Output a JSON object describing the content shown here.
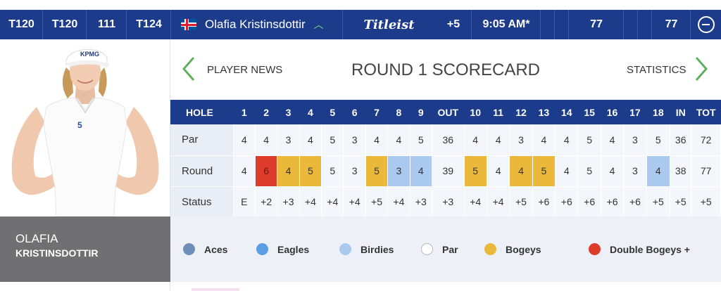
{
  "topbar": {
    "pos_1": "T120",
    "pos_2": "T120",
    "pos_3": "111",
    "pos_4": "T124",
    "player_name": "Olafia Kristinsdottir",
    "brand": "Titleist",
    "to_par": "+5",
    "tee_time": "9:05 AM*",
    "score_1": "77",
    "score_2": "77"
  },
  "player": {
    "first_name": "OLAFIA",
    "last_name": "KRISTINSDOTTIR"
  },
  "scorecard": {
    "player_news": "PLAYER NEWS",
    "title": "ROUND 1 SCORECARD",
    "statistics": "STATISTICS",
    "headers": [
      "HOLE",
      "1",
      "2",
      "3",
      "4",
      "5",
      "6",
      "7",
      "8",
      "9",
      "OUT",
      "10",
      "11",
      "12",
      "13",
      "14",
      "15",
      "16",
      "17",
      "18",
      "IN",
      "TOT"
    ],
    "rows": [
      {
        "label": "Par",
        "cells": [
          "4",
          "4",
          "3",
          "4",
          "5",
          "3",
          "4",
          "4",
          "5",
          "36",
          "4",
          "4",
          "3",
          "4",
          "4",
          "5",
          "4",
          "3",
          "5",
          "36",
          "72"
        ]
      },
      {
        "label": "Round",
        "cells": [
          "4",
          "6",
          "4",
          "5",
          "5",
          "3",
          "5",
          "3",
          "4",
          "39",
          "5",
          "4",
          "4",
          "5",
          "4",
          "5",
          "4",
          "3",
          "4",
          "38",
          "77"
        ]
      },
      {
        "label": "Status",
        "cells": [
          "E",
          "+2",
          "+3",
          "+4",
          "+4",
          "+4",
          "+5",
          "+4",
          "+3",
          "+3",
          "+4",
          "+4",
          "+5",
          "+6",
          "+6",
          "+6",
          "+6",
          "+6",
          "+5",
          "+5",
          "+5"
        ]
      }
    ],
    "round_cell_types": [
      "par",
      "dbl",
      "bogey",
      "bogey",
      "par",
      "par",
      "bogey",
      "birdie",
      "birdie",
      "total",
      "bogey",
      "par",
      "bogey",
      "bogey",
      "par",
      "par",
      "par",
      "par",
      "birdie",
      "total",
      "total"
    ]
  },
  "legend": [
    {
      "label": "Aces",
      "color": "#6f8fb9"
    },
    {
      "label": "Eagles",
      "color": "#5b9ee4"
    },
    {
      "label": "Birdies",
      "color": "#a9c9ee"
    },
    {
      "label": "Par",
      "color": "#ffffff"
    },
    {
      "label": "Bogeys",
      "color": "#eab83a"
    },
    {
      "label": "Double Bogeys +",
      "color": "#dd3b2b"
    }
  ],
  "colors": {
    "header_blue": "#1d3b8b",
    "nav_arrow_green": "#5fb05f",
    "name_panel_gray": "#707072"
  }
}
